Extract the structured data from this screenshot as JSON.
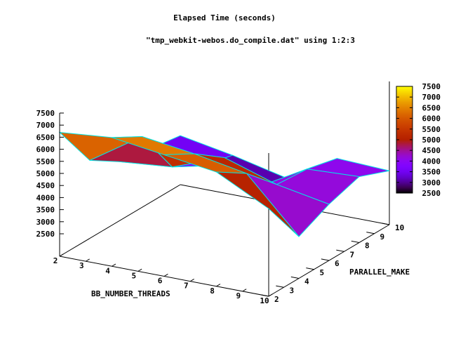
{
  "chart_data": {
    "type": "surface3d",
    "title": "Elapsed Time (seconds)",
    "subtitle": "\"tmp_webkit-webos.do_compile.dat\" using 1:2:3",
    "xlabel": "BB_NUMBER_THREADS",
    "ylabel": "PARALLEL_MAKE",
    "x": [
      2,
      4,
      6,
      8,
      10
    ],
    "y": [
      2,
      4,
      6,
      8,
      10
    ],
    "z": [
      [
        6700,
        6900,
        6600,
        6300,
        5200
      ],
      [
        4800,
        6200,
        5900,
        5500,
        3300
      ],
      [
        4000,
        4200,
        5000,
        4300,
        3900
      ],
      [
        3800,
        3500,
        3000,
        4200,
        4300
      ],
      [
        3600,
        3200,
        2700,
        3900,
        3800
      ]
    ],
    "xticks": [
      "2",
      "3",
      "4",
      "5",
      "6",
      "7",
      "8",
      "9",
      "10"
    ],
    "yticks": [
      "2",
      "3",
      "4",
      "5",
      "6",
      "7",
      "8",
      "9",
      "10"
    ],
    "zticks": [
      "2500",
      "3000",
      "3500",
      "4000",
      "4500",
      "5000",
      "5500",
      "6000",
      "6500",
      "7000",
      "7500"
    ],
    "cbticks": [
      "2500",
      "3000",
      "3500",
      "4000",
      "4500",
      "5000",
      "5500",
      "6000",
      "6500",
      "7000",
      "7500"
    ],
    "xlim": [
      2,
      10
    ],
    "ylim": [
      2,
      10
    ],
    "zlim": [
      2500,
      7500
    ],
    "cbrange": [
      2500,
      7500
    ],
    "edge_color": "#00e5e5"
  }
}
